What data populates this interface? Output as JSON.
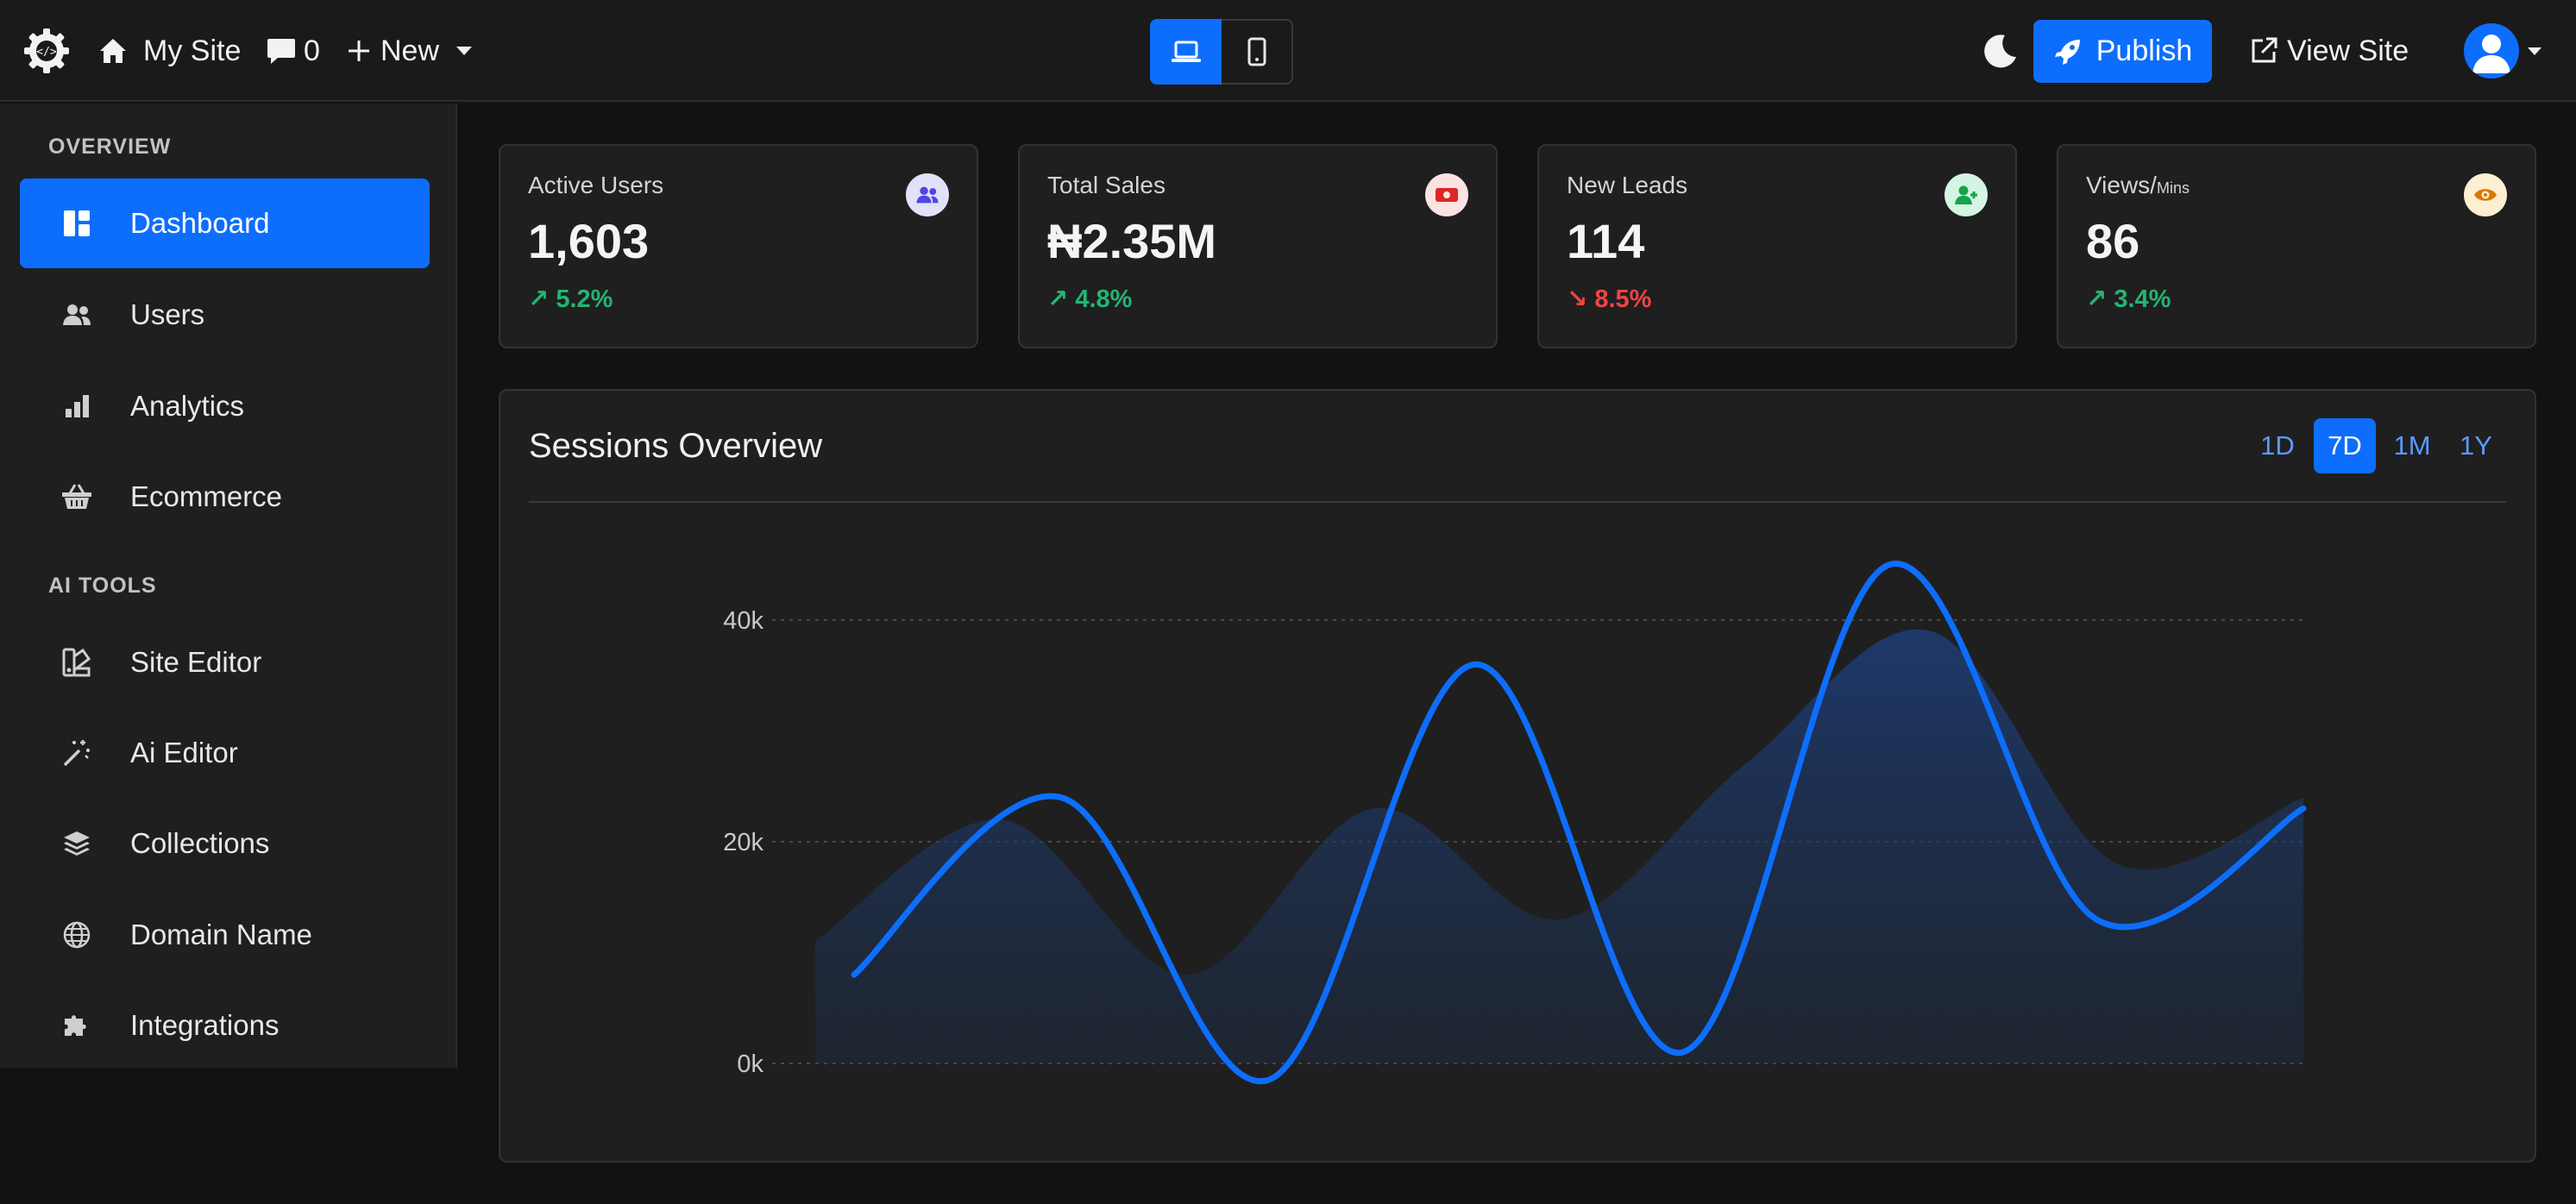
{
  "topbar": {
    "site_name": "My Site",
    "comments_count": "0",
    "new_label": "New",
    "publish_label": "Publish",
    "view_site_label": "View Site"
  },
  "sidebar": {
    "sections": [
      {
        "title": "OVERVIEW",
        "items": [
          "Dashboard",
          "Users",
          "Analytics",
          "Ecommerce"
        ]
      },
      {
        "title": "AI TOOLS",
        "items": [
          "Site Editor",
          "Ai Editor",
          "Collections",
          "Domain Name",
          "Integrations"
        ]
      }
    ],
    "active_item": "Dashboard"
  },
  "stats": [
    {
      "label": "Active Users",
      "value": "1,603",
      "delta": "↗ 5.2%",
      "trend": "up",
      "icon": "users-icon"
    },
    {
      "label": "Total Sales",
      "value": "₦2.35M",
      "delta": "↗ 4.8%",
      "trend": "up",
      "icon": "money-icon"
    },
    {
      "label": "New Leads",
      "value": "114",
      "delta": "↘ 8.5%",
      "trend": "down",
      "icon": "user-plus-icon"
    },
    {
      "label": "Views/",
      "label_small": "Mins",
      "value": "86",
      "delta": "↗ 3.4%",
      "trend": "up",
      "icon": "eye-icon"
    }
  ],
  "sessions": {
    "title": "Sessions Overview",
    "ranges": [
      "1D",
      "7D",
      "1M",
      "1Y"
    ],
    "active_range": "7D"
  },
  "colors": {
    "accent": "#0d6efd",
    "up": "#22b573",
    "down": "#ef4444"
  },
  "chart_data": {
    "type": "line",
    "y_ticks": [
      "0k",
      "20k",
      "40k"
    ],
    "ylim": [
      0,
      40000
    ],
    "grid": true,
    "series": [
      {
        "values": [
          8000,
          24000,
          -1500,
          36000,
          1000,
          45000,
          13000,
          23000
        ]
      },
      {
        "values": [
          11000,
          22000,
          8000,
          23000,
          13000,
          27000,
          39000,
          18000,
          24000
        ]
      }
    ]
  }
}
